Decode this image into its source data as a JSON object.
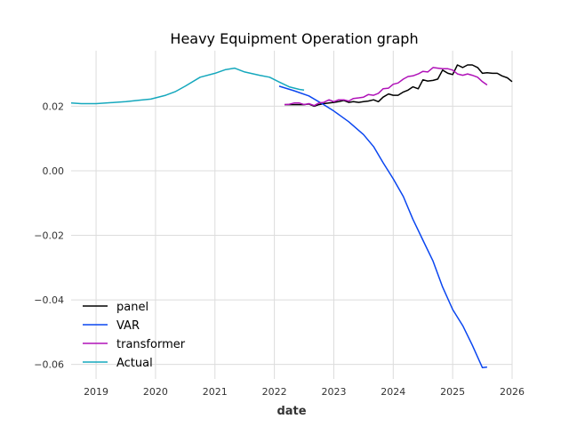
{
  "chart_data": {
    "type": "line",
    "title": "Heavy Equipment Operation graph",
    "xlabel": "date",
    "ylabel": "",
    "xlim": [
      2018.58,
      2026.0
    ],
    "ylim": [
      -0.0645,
      0.0372
    ],
    "x_ticks": [
      2019,
      2020,
      2021,
      2022,
      2023,
      2024,
      2025,
      2026
    ],
    "x_tick_labels": [
      "2019",
      "2020",
      "2021",
      "2022",
      "2023",
      "2024",
      "2025",
      "2026"
    ],
    "y_ticks": [
      0.02,
      0.0,
      -0.02,
      -0.04,
      -0.06
    ],
    "y_tick_labels": [
      "0.02",
      "0.00",
      "−0.02",
      "−0.04",
      "−0.06"
    ],
    "grid": true,
    "legend_position": "lower-left",
    "series": [
      {
        "name": "panel",
        "color": "#000000",
        "x": [
          2022.17,
          2022.33,
          2022.5,
          2022.58,
          2022.67,
          2022.75,
          2022.83,
          2022.92,
          2023.0,
          2023.08,
          2023.17,
          2023.25,
          2023.33,
          2023.42,
          2023.5,
          2023.58,
          2023.67,
          2023.75,
          2023.83,
          2023.92,
          2024.0,
          2024.08,
          2024.17,
          2024.25,
          2024.33,
          2024.42,
          2024.5,
          2024.58,
          2024.67,
          2024.75,
          2024.83,
          2024.92,
          2025.0,
          2025.08,
          2025.17,
          2025.25,
          2025.33,
          2025.42,
          2025.5,
          2025.58,
          2025.67,
          2025.75,
          2025.83,
          2025.92,
          2026.0
        ],
        "y": [
          0.0205,
          0.0205,
          0.0205,
          0.0207,
          0.02,
          0.0205,
          0.0208,
          0.021,
          0.0212,
          0.0214,
          0.0218,
          0.0212,
          0.0214,
          0.0212,
          0.0214,
          0.0216,
          0.022,
          0.0214,
          0.0228,
          0.0238,
          0.0234,
          0.0234,
          0.0244,
          0.025,
          0.026,
          0.0254,
          0.0282,
          0.0278,
          0.028,
          0.0284,
          0.0312,
          0.0302,
          0.0298,
          0.0328,
          0.032,
          0.0328,
          0.0328,
          0.032,
          0.0302,
          0.0304,
          0.0302,
          0.0302,
          0.0294,
          0.0288,
          0.0276
        ]
      },
      {
        "name": "VAR",
        "color": "#0a46f0",
        "x": [
          2022.08,
          2022.33,
          2022.58,
          2022.83,
          2023.0,
          2023.25,
          2023.5,
          2023.67,
          2023.83,
          2024.0,
          2024.17,
          2024.33,
          2024.5,
          2024.67,
          2024.83,
          2025.0,
          2025.17,
          2025.33,
          2025.5,
          2025.58
        ],
        "y": [
          0.0262,
          0.0248,
          0.0232,
          0.0205,
          0.0185,
          0.0152,
          0.0112,
          0.0075,
          0.0025,
          -0.0025,
          -0.008,
          -0.015,
          -0.0215,
          -0.028,
          -0.036,
          -0.043,
          -0.048,
          -0.054,
          -0.061,
          -0.0608
        ]
      },
      {
        "name": "transformer",
        "color": "#b012b8",
        "x": [
          2022.17,
          2022.25,
          2022.33,
          2022.42,
          2022.5,
          2022.58,
          2022.67,
          2022.75,
          2022.83,
          2022.92,
          2023.0,
          2023.08,
          2023.17,
          2023.25,
          2023.33,
          2023.42,
          2023.5,
          2023.58,
          2023.67,
          2023.75,
          2023.83,
          2023.92,
          2024.0,
          2024.08,
          2024.17,
          2024.25,
          2024.33,
          2024.42,
          2024.5,
          2024.58,
          2024.67,
          2024.75,
          2024.83,
          2024.92,
          2025.0,
          2025.08,
          2025.17,
          2025.25,
          2025.33,
          2025.42,
          2025.5,
          2025.58
        ],
        "y": [
          0.0205,
          0.0206,
          0.021,
          0.021,
          0.0205,
          0.0208,
          0.0202,
          0.021,
          0.0212,
          0.022,
          0.0214,
          0.022,
          0.022,
          0.0216,
          0.0224,
          0.0226,
          0.0228,
          0.0236,
          0.0234,
          0.024,
          0.0254,
          0.0256,
          0.0268,
          0.0272,
          0.0284,
          0.0292,
          0.0294,
          0.03,
          0.0308,
          0.0306,
          0.032,
          0.0318,
          0.0316,
          0.0316,
          0.0312,
          0.03,
          0.0296,
          0.03,
          0.0296,
          0.029,
          0.0276,
          0.0266
        ]
      },
      {
        "name": "Actual",
        "color": "#15a8bd",
        "x": [
          2018.58,
          2018.75,
          2019.0,
          2019.25,
          2019.5,
          2019.75,
          2019.92,
          2020.17,
          2020.33,
          2020.5,
          2020.75,
          2021.0,
          2021.17,
          2021.33,
          2021.5,
          2021.75,
          2021.92,
          2022.08,
          2022.25,
          2022.42,
          2022.5
        ],
        "y": [
          0.021,
          0.0208,
          0.0208,
          0.0211,
          0.0214,
          0.0219,
          0.0222,
          0.0234,
          0.0245,
          0.0262,
          0.029,
          0.0302,
          0.0313,
          0.0318,
          0.0306,
          0.0296,
          0.029,
          0.0275,
          0.026,
          0.0252,
          0.025
        ]
      }
    ]
  }
}
